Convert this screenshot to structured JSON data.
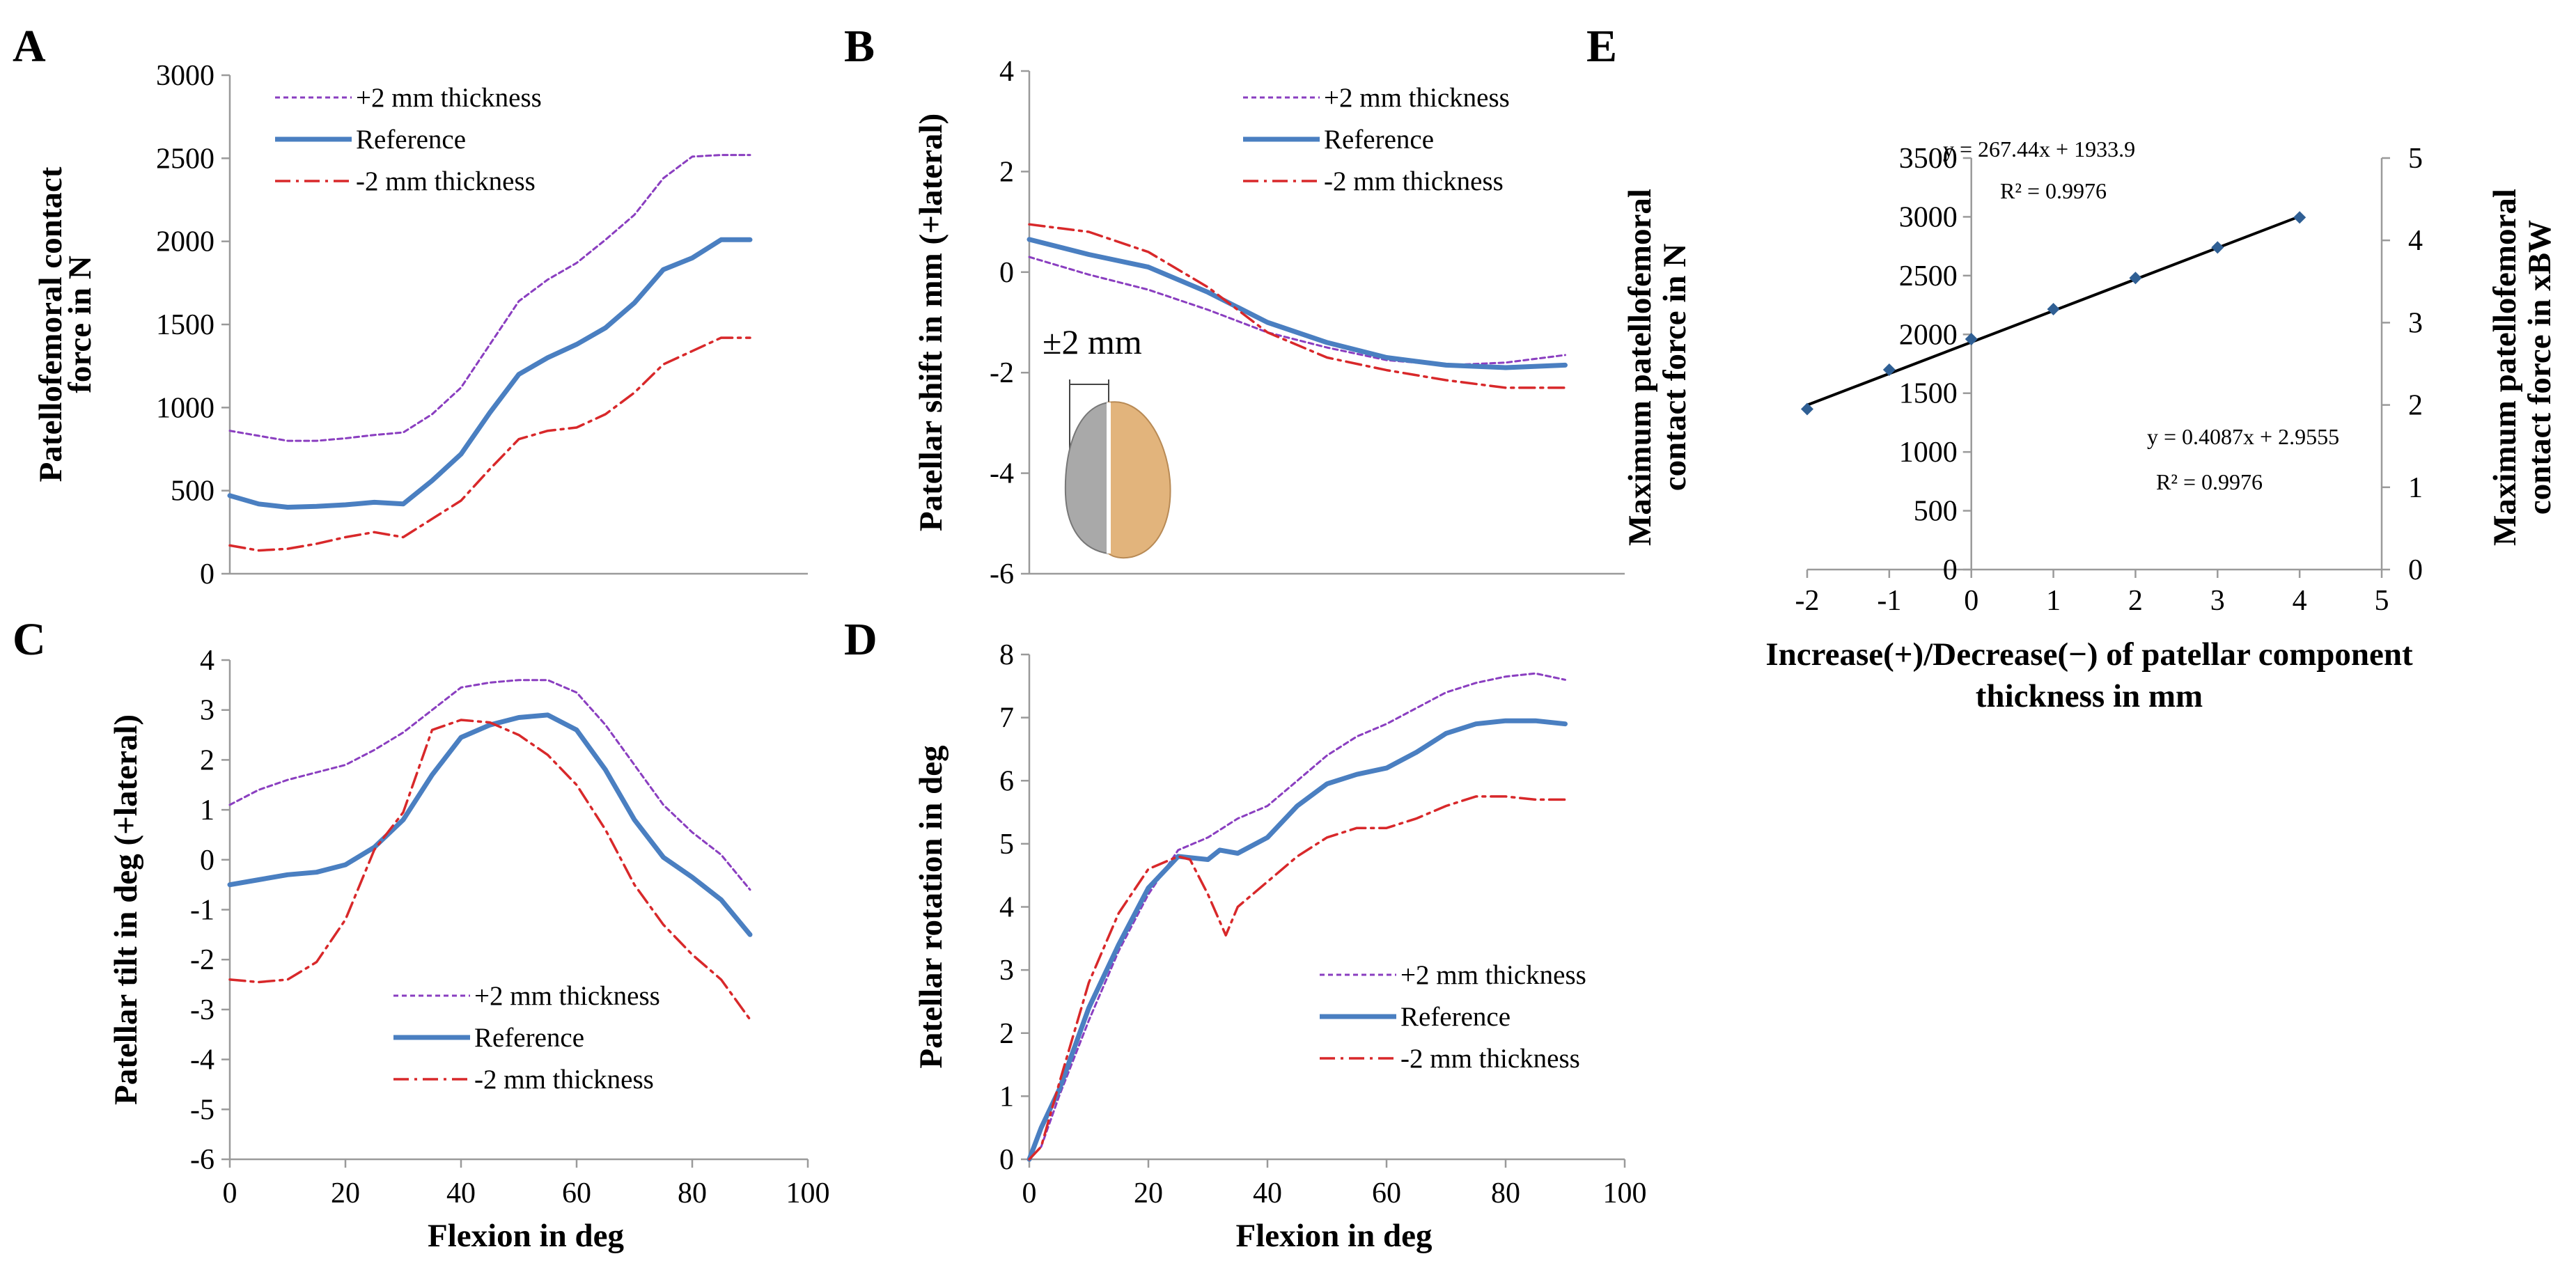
{
  "colors": {
    "plus2": "#8a3ec0",
    "reference": "#4a7fc1",
    "minus2": "#d8282a",
    "fit_line": "#000000",
    "marker": "#2f5f94",
    "bone_gray": "#a9a9a9",
    "implant_tan": "#e2b47c"
  },
  "chart_data": [
    {
      "panel": "A",
      "type": "line",
      "xlabel": "",
      "ylabel_lines": [
        "Patellofemoral contact",
        "force in N"
      ],
      "xlim": [
        0,
        100
      ],
      "ylim": [
        0,
        3000
      ],
      "xticks": [],
      "yticks": [
        "0",
        "500",
        "1000",
        "1500",
        "2000",
        "2500",
        "3000"
      ],
      "legend": [
        "+2 mm thickness",
        "Reference",
        "-2 mm thickness"
      ],
      "legend_position": "top-left",
      "series": [
        {
          "name": "+2 mm thickness",
          "x": [
            0,
            5,
            10,
            15,
            20,
            25,
            30,
            35,
            40,
            45,
            50,
            55,
            60,
            65,
            70,
            75,
            80,
            85,
            90
          ],
          "values": [
            860,
            830,
            800,
            800,
            815,
            835,
            850,
            960,
            1120,
            1380,
            1640,
            1770,
            1870,
            2010,
            2160,
            2380,
            2510,
            2520,
            2520
          ]
        },
        {
          "name": "Reference",
          "x": [
            0,
            5,
            10,
            15,
            20,
            25,
            30,
            35,
            40,
            45,
            50,
            55,
            60,
            65,
            70,
            75,
            80,
            85,
            90
          ],
          "values": [
            470,
            420,
            400,
            405,
            415,
            430,
            420,
            560,
            720,
            970,
            1200,
            1300,
            1380,
            1480,
            1630,
            1830,
            1900,
            2010,
            2010
          ]
        },
        {
          "name": "-2 mm thickness",
          "x": [
            0,
            5,
            10,
            15,
            20,
            25,
            30,
            35,
            40,
            45,
            50,
            55,
            60,
            65,
            70,
            75,
            80,
            85,
            90
          ],
          "values": [
            170,
            140,
            150,
            180,
            220,
            250,
            220,
            330,
            440,
            630,
            810,
            860,
            880,
            960,
            1090,
            1260,
            1340,
            1420,
            1420
          ]
        }
      ]
    },
    {
      "panel": "B",
      "type": "line",
      "xlabel": "",
      "ylabel_lines": [
        "Patellar shift in mm (+lateral)"
      ],
      "xlim": [
        0,
        100
      ],
      "ylim": [
        -6,
        4
      ],
      "xticks": [],
      "yticks": [
        "-6",
        "-4",
        "-2",
        "0",
        "2",
        "4"
      ],
      "legend": [
        "+2 mm thickness",
        "Reference",
        "-2 mm thickness"
      ],
      "legend_position": "top-right",
      "inset_label": "±2 mm",
      "series": [
        {
          "name": "+2 mm thickness",
          "x": [
            0,
            10,
            20,
            30,
            40,
            50,
            60,
            70,
            80,
            90
          ],
          "values": [
            0.3,
            -0.05,
            -0.35,
            -0.75,
            -1.2,
            -1.5,
            -1.75,
            -1.85,
            -1.8,
            -1.65
          ]
        },
        {
          "name": "Reference",
          "x": [
            0,
            10,
            20,
            30,
            40,
            50,
            60,
            70,
            80,
            90
          ],
          "values": [
            0.65,
            0.35,
            0.1,
            -0.4,
            -1.0,
            -1.4,
            -1.7,
            -1.85,
            -1.9,
            -1.85
          ]
        },
        {
          "name": "-2 mm thickness",
          "x": [
            0,
            10,
            20,
            30,
            40,
            50,
            60,
            70,
            80,
            90
          ],
          "values": [
            0.95,
            0.8,
            0.4,
            -0.3,
            -1.2,
            -1.7,
            -1.95,
            -2.15,
            -2.3,
            -2.3
          ]
        }
      ]
    },
    {
      "panel": "C",
      "type": "line",
      "xlabel": "Flexion in deg",
      "ylabel_lines": [
        "Patellar tilt in deg (+lateral)"
      ],
      "xlim": [
        0,
        100
      ],
      "ylim": [
        -6,
        4
      ],
      "xticks": [
        "0",
        "20",
        "40",
        "60",
        "80",
        "100"
      ],
      "yticks": [
        "-6",
        "-5",
        "-4",
        "-3",
        "-2",
        "-1",
        "0",
        "1",
        "2",
        "3",
        "4"
      ],
      "legend": [
        "+2 mm thickness",
        "Reference",
        "-2 mm thickness"
      ],
      "legend_position": "bottom-center",
      "series": [
        {
          "name": "+2 mm thickness",
          "x": [
            0,
            5,
            10,
            15,
            20,
            25,
            30,
            35,
            40,
            45,
            50,
            55,
            60,
            65,
            70,
            75,
            80,
            85,
            90
          ],
          "values": [
            1.1,
            1.4,
            1.6,
            1.75,
            1.9,
            2.2,
            2.55,
            3.0,
            3.45,
            3.55,
            3.6,
            3.6,
            3.35,
            2.7,
            1.9,
            1.1,
            0.55,
            0.1,
            -0.6
          ]
        },
        {
          "name": "Reference",
          "x": [
            0,
            5,
            10,
            15,
            20,
            25,
            30,
            35,
            40,
            45,
            50,
            55,
            60,
            65,
            70,
            75,
            80,
            85,
            90
          ],
          "values": [
            -0.5,
            -0.4,
            -0.3,
            -0.25,
            -0.1,
            0.25,
            0.8,
            1.7,
            2.45,
            2.7,
            2.85,
            2.9,
            2.6,
            1.8,
            0.8,
            0.05,
            -0.35,
            -0.8,
            -1.5
          ]
        },
        {
          "name": "-2 mm thickness",
          "x": [
            0,
            5,
            10,
            15,
            20,
            25,
            30,
            35,
            40,
            45,
            50,
            55,
            60,
            65,
            70,
            75,
            80,
            85,
            90
          ],
          "values": [
            -2.4,
            -2.45,
            -2.4,
            -2.05,
            -1.2,
            0.2,
            0.95,
            2.6,
            2.8,
            2.75,
            2.5,
            2.1,
            1.5,
            0.6,
            -0.5,
            -1.3,
            -1.9,
            -2.4,
            -3.2
          ]
        }
      ]
    },
    {
      "panel": "D",
      "type": "line",
      "xlabel": "Flexion in deg",
      "ylabel_lines": [
        "Patellar rotation in deg"
      ],
      "xlim": [
        0,
        100
      ],
      "ylim": [
        0,
        8
      ],
      "xticks": [
        "0",
        "20",
        "40",
        "60",
        "80",
        "100"
      ],
      "yticks": [
        "0",
        "1",
        "2",
        "3",
        "4",
        "5",
        "6",
        "7",
        "8"
      ],
      "legend": [
        "+2 mm thickness",
        "Reference",
        "-2 mm thickness"
      ],
      "legend_position": "bottom-right",
      "series": [
        {
          "name": "+2 mm thickness",
          "x": [
            0,
            2,
            5,
            10,
            15,
            20,
            25,
            30,
            35,
            40,
            45,
            50,
            55,
            60,
            65,
            70,
            75,
            80,
            85,
            90
          ],
          "values": [
            0,
            0.2,
            1.0,
            2.2,
            3.3,
            4.2,
            4.9,
            5.1,
            5.4,
            5.6,
            6.0,
            6.4,
            6.7,
            6.9,
            7.15,
            7.4,
            7.55,
            7.65,
            7.7,
            7.6
          ]
        },
        {
          "name": "Reference",
          "x": [
            0,
            2,
            5,
            10,
            15,
            20,
            25,
            30,
            32,
            35,
            40,
            45,
            50,
            55,
            60,
            65,
            70,
            75,
            80,
            85,
            90
          ],
          "values": [
            0,
            0.5,
            1.1,
            2.4,
            3.4,
            4.3,
            4.8,
            4.75,
            4.9,
            4.85,
            5.1,
            5.6,
            5.95,
            6.1,
            6.2,
            6.45,
            6.75,
            6.9,
            6.95,
            6.95,
            6.9
          ]
        },
        {
          "name": "-2 mm thickness",
          "x": [
            0,
            2,
            5,
            10,
            15,
            20,
            25,
            27,
            30,
            33,
            35,
            40,
            45,
            50,
            55,
            60,
            65,
            70,
            75,
            80,
            85,
            90
          ],
          "values": [
            0,
            0.2,
            1.2,
            2.8,
            3.9,
            4.6,
            4.8,
            4.75,
            4.2,
            3.55,
            4.0,
            4.4,
            4.8,
            5.1,
            5.25,
            5.25,
            5.4,
            5.6,
            5.75,
            5.75,
            5.7,
            5.7
          ]
        }
      ]
    },
    {
      "panel": "E",
      "type": "scatter",
      "xlabel_lines": [
        "Increase(+)/Decrease(−) of patellar component",
        "thickness in mm"
      ],
      "ylabel_lines": [
        "Maximum patellofemoral",
        "contact force in N"
      ],
      "ylabel_right_lines": [
        "Maximum patellofemoral",
        "contact force in xBW"
      ],
      "xlim": [
        -2,
        5
      ],
      "ylim": [
        0,
        3500
      ],
      "ylim_right": [
        0,
        5
      ],
      "xticks": [
        "-2",
        "-1",
        "0",
        "1",
        "2",
        "3",
        "4",
        "5"
      ],
      "yticks": [
        "0",
        "500",
        "1000",
        "1500",
        "2000",
        "2500",
        "3000",
        "3500"
      ],
      "yticks_right": [
        "0",
        "1",
        "2",
        "3",
        "4",
        "5"
      ],
      "x": [
        -2,
        -1,
        0,
        1,
        2,
        3,
        4
      ],
      "values": [
        1365,
        1700,
        1960,
        2215,
        2480,
        2740,
        2995
      ],
      "fit": {
        "slope": 267.44,
        "intercept": 1933.9
      },
      "equation_left": "y = 267.44x + 1933.9",
      "r2_left": "R² = 0.9976",
      "equation_right": "y = 0.4087x + 2.9555",
      "r2_right": "R² = 0.9976"
    }
  ]
}
